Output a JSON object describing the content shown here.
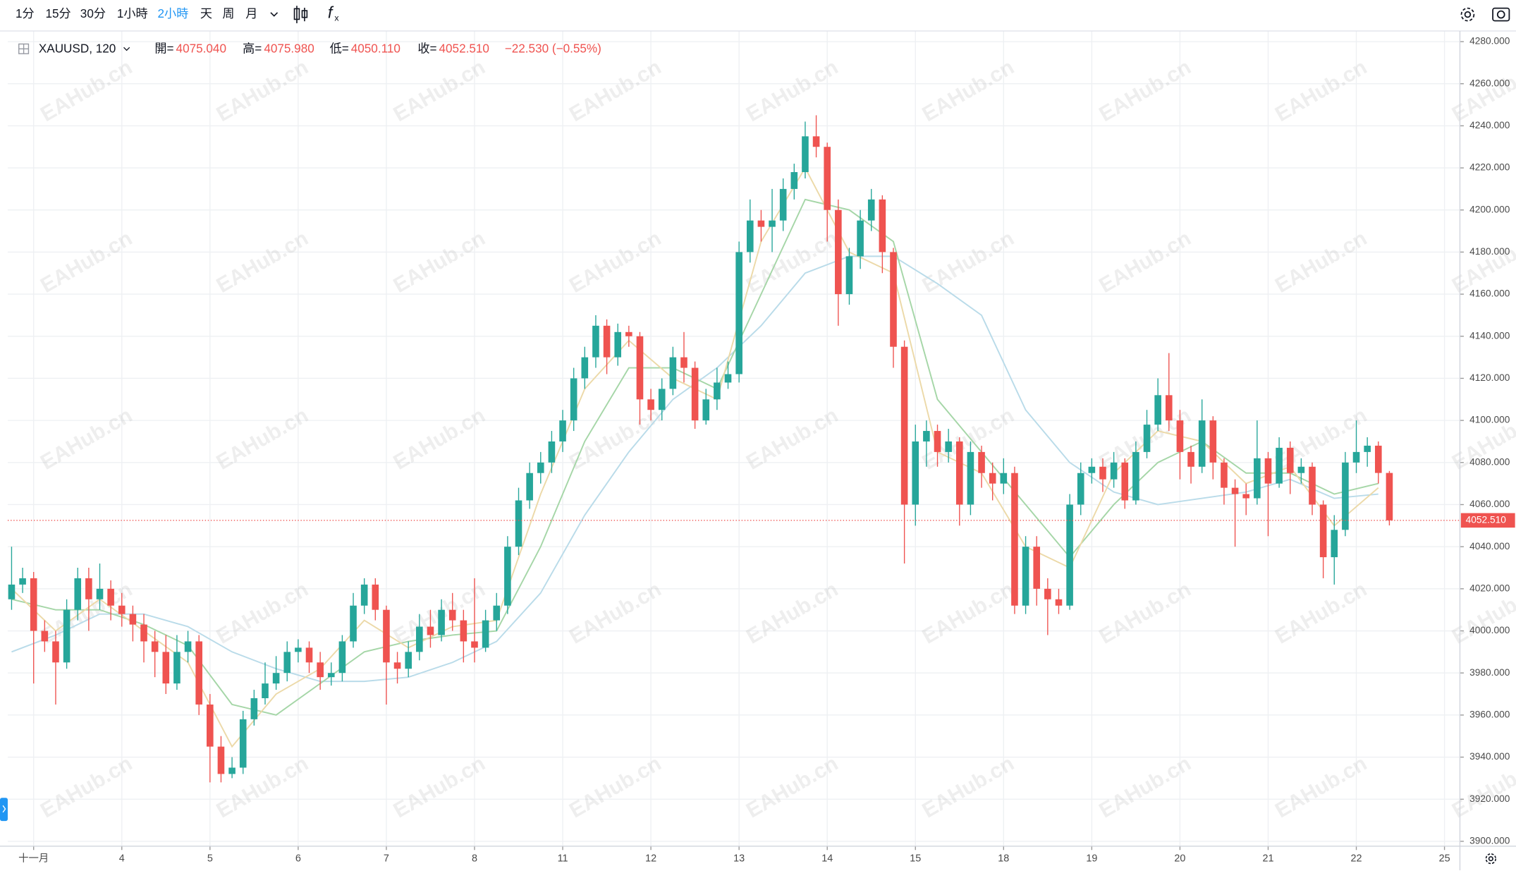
{
  "toolbar": {
    "intervals": [
      "1分",
      "15分",
      "30分",
      "1小時",
      "2小時",
      "天",
      "周",
      "月"
    ],
    "active": 4
  },
  "legend": {
    "symbol": "XAUUSD, 120",
    "open_label": "開=",
    "open": "4075.040",
    "high_label": "高=",
    "high": "4075.980",
    "low_label": "低=",
    "low": "4050.110",
    "close_label": "收=",
    "close": "4052.510",
    "change": "−22.530 (−0.55%)"
  },
  "watermark": "EAHub.cn",
  "chart_data": {
    "type": "candlestick",
    "up_color": "#26a69a",
    "down_color": "#ef5350",
    "grid": true,
    "open": [
      4015,
      4022,
      4025,
      4000,
      3995,
      3985,
      4010,
      4025,
      4015,
      4020,
      4012,
      4008,
      4003,
      3995,
      3990,
      3975,
      3990,
      3995,
      3965,
      3945,
      3932,
      3935,
      3958,
      3968,
      3975,
      3980,
      3990,
      3992,
      3985,
      3978,
      3980,
      3995,
      4012,
      4022,
      4010,
      3985,
      3982,
      3990,
      4002,
      3998,
      4010,
      4005,
      3995,
      3992,
      4005,
      4012,
      4040,
      4062,
      4075,
      4080,
      4090,
      4100,
      4120,
      4130,
      4145,
      4130,
      4142,
      4140,
      4110,
      4105,
      4115,
      4130,
      4125,
      4100,
      4110,
      4118,
      4122,
      4180,
      4195,
      4192,
      4195,
      4210,
      4218,
      4235,
      4230,
      4200,
      4160,
      4178,
      4195,
      4205,
      4180,
      4135,
      4060,
      4090,
      4095,
      4085,
      4090,
      4060,
      4085,
      4075,
      4070,
      4075,
      4012,
      4040,
      4020,
      4015,
      4012,
      4060,
      4075,
      4078,
      4072,
      4080,
      4062,
      4085,
      4098,
      4112,
      4100,
      4085,
      4078,
      4100,
      4080,
      4068,
      4065,
      4063,
      4082,
      4070,
      4087,
      4075,
      4078,
      4060,
      4035,
      4048,
      4080,
      4085,
      4088,
      4075.04
    ],
    "high": [
      4040,
      4030,
      4028,
      4005,
      4000,
      4015,
      4030,
      4030,
      4032,
      4024,
      4018,
      4012,
      4008,
      4000,
      3998,
      3998,
      4000,
      3998,
      3970,
      3950,
      3940,
      3962,
      3972,
      3985,
      3988,
      3995,
      3996,
      3995,
      3990,
      3985,
      3998,
      4018,
      4025,
      4025,
      4012,
      3990,
      3995,
      4008,
      4010,
      4015,
      4018,
      4010,
      4025,
      4010,
      4018,
      4045,
      4068,
      4080,
      4085,
      4095,
      4105,
      4125,
      4135,
      4150,
      4148,
      4146,
      4145,
      4142,
      4115,
      4120,
      4135,
      4142,
      4128,
      4115,
      4125,
      4128,
      4185,
      4205,
      4200,
      4210,
      4215,
      4222,
      4242,
      4245,
      4232,
      4205,
      4182,
      4200,
      4210,
      4207,
      4182,
      4138,
      4098,
      4100,
      4098,
      4096,
      4092,
      4090,
      4088,
      4080,
      4082,
      4078,
      4045,
      4045,
      4025,
      4020,
      4065,
      4080,
      4082,
      4082,
      4085,
      4082,
      4090,
      4105,
      4120,
      4132,
      4105,
      4088,
      4110,
      4102,
      4082,
      4072,
      4070,
      4100,
      4085,
      4092,
      4090,
      4082,
      4080,
      4062,
      4055,
      4085,
      4100,
      4092,
      4090,
      4075.98
    ],
    "low": [
      4010,
      4018,
      3975,
      3990,
      3965,
      3982,
      4005,
      4000,
      4010,
      4005,
      4002,
      3995,
      3985,
      3978,
      3970,
      3972,
      3985,
      3960,
      3928,
      3928,
      3930,
      3932,
      3955,
      3965,
      3972,
      3976,
      3985,
      3980,
      3972,
      3974,
      3976,
      3992,
      4008,
      4005,
      3965,
      3975,
      3978,
      3986,
      3992,
      3995,
      4000,
      3985,
      3985,
      3990,
      4000,
      4008,
      4036,
      4058,
      4070,
      4075,
      4085,
      4095,
      4115,
      4125,
      4122,
      4126,
      4135,
      4098,
      4100,
      4100,
      4112,
      4118,
      4096,
      4098,
      4105,
      4115,
      4118,
      4175,
      4185,
      4180,
      4190,
      4205,
      4215,
      4225,
      4185,
      4145,
      4155,
      4172,
      4190,
      4170,
      4125,
      4032,
      4050,
      4078,
      4078,
      4080,
      4050,
      4055,
      4068,
      4062,
      4065,
      4008,
      4008,
      4012,
      3998,
      4008,
      4010,
      4055,
      4070,
      4066,
      4068,
      4058,
      4060,
      4082,
      4095,
      4095,
      4072,
      4070,
      4075,
      4072,
      4060,
      4040,
      4055,
      4060,
      4045,
      4068,
      4065,
      4070,
      4055,
      4025,
      4022,
      4045,
      4075,
      4078,
      4070,
      4050.11
    ],
    "close": [
      4022,
      4025,
      4000,
      3995,
      3985,
      4010,
      4025,
      4015,
      4020,
      4012,
      4008,
      4003,
      3995,
      3990,
      3975,
      3990,
      3995,
      3965,
      3945,
      3932,
      3935,
      3958,
      3968,
      3975,
      3980,
      3990,
      3992,
      3985,
      3978,
      3980,
      3995,
      4012,
      4022,
      4010,
      3985,
      3982,
      3990,
      4002,
      3998,
      4010,
      4005,
      3995,
      3992,
      4005,
      4012,
      4040,
      4062,
      4075,
      4080,
      4090,
      4100,
      4120,
      4130,
      4145,
      4130,
      4142,
      4140,
      4110,
      4105,
      4115,
      4130,
      4125,
      4100,
      4110,
      4118,
      4122,
      4180,
      4195,
      4192,
      4195,
      4210,
      4218,
      4235,
      4230,
      4200,
      4160,
      4178,
      4195,
      4205,
      4180,
      4135,
      4060,
      4090,
      4095,
      4085,
      4090,
      4060,
      4085,
      4075,
      4070,
      4075,
      4012,
      4040,
      4020,
      4015,
      4012,
      4060,
      4075,
      4078,
      4072,
      4080,
      4062,
      4085,
      4098,
      4112,
      4100,
      4085,
      4078,
      4100,
      4080,
      4068,
      4065,
      4063,
      4082,
      4070,
      4087,
      4075,
      4078,
      4060,
      4035,
      4048,
      4080,
      4085,
      4088,
      4075.04,
      4052.51
    ],
    "lines": [
      {
        "color": "#b9dbe9",
        "x": [
          0,
          4,
          8,
          12,
          16,
          20,
          24,
          28,
          32,
          36,
          40,
          44,
          48,
          52,
          56,
          60,
          64,
          68,
          72,
          76,
          80,
          84,
          88,
          92,
          96,
          100,
          104,
          108,
          112,
          116,
          120,
          124
        ],
        "values": [
          3990,
          3998,
          4008,
          4008,
          4002,
          3990,
          3982,
          3976,
          3976,
          3978,
          3985,
          3995,
          4018,
          4055,
          4085,
          4110,
          4125,
          4145,
          4170,
          4178,
          4178,
          4165,
          4150,
          4105,
          4080,
          4066,
          4060,
          4063,
          4066,
          4072,
          4063,
          4065
        ]
      },
      {
        "color": "#a5d6a7",
        "x": [
          0,
          4,
          8,
          12,
          16,
          20,
          24,
          28,
          32,
          36,
          40,
          44,
          48,
          52,
          56,
          60,
          64,
          68,
          72,
          76,
          80,
          84,
          88,
          92,
          96,
          100,
          104,
          108,
          112,
          116,
          120,
          124
        ],
        "values": [
          4015,
          4010,
          4010,
          4003,
          3993,
          3965,
          3960,
          3975,
          3990,
          3995,
          3998,
          4000,
          4040,
          4090,
          4125,
          4125,
          4115,
          4160,
          4205,
          4200,
          4185,
          4110,
          4085,
          4060,
          4035,
          4060,
          4080,
          4090,
          4075,
          4075,
          4065,
          4070
        ]
      },
      {
        "color": "#ecd9a8",
        "x": [
          0,
          4,
          8,
          12,
          16,
          20,
          24,
          28,
          32,
          36,
          40,
          44,
          48,
          52,
          56,
          60,
          64,
          68,
          72,
          76,
          80,
          84,
          88,
          92,
          96,
          100,
          104,
          108,
          112,
          116,
          120,
          124
        ],
        "values": [
          4020,
          4000,
          4015,
          4000,
          3985,
          3945,
          3970,
          3982,
          4005,
          3992,
          4002,
          4005,
          4065,
          4115,
          4138,
          4120,
          4110,
          4185,
          4220,
          4180,
          4170,
          4085,
          4075,
          4040,
          4030,
          4075,
          4095,
          4090,
          4070,
          4078,
          4050,
          4068
        ]
      }
    ],
    "price_line": {
      "value": 4052.51,
      "label": "4052.510",
      "color": "#ef5350"
    },
    "xlim": [
      -0.35,
      131.4
    ],
    "xticks": [
      {
        "value": 2,
        "label": "十一月"
      },
      {
        "value": 10,
        "label": "4"
      },
      {
        "value": 18,
        "label": "5"
      },
      {
        "value": 26,
        "label": "6"
      },
      {
        "value": 34,
        "label": "7"
      },
      {
        "value": 42,
        "label": "8"
      },
      {
        "value": 50,
        "label": "11"
      },
      {
        "value": 58,
        "label": "12"
      },
      {
        "value": 66,
        "label": "13"
      },
      {
        "value": 74,
        "label": "14"
      },
      {
        "value": 82,
        "label": "15"
      },
      {
        "value": 90,
        "label": "18"
      },
      {
        "value": 98,
        "label": "19"
      },
      {
        "value": 106,
        "label": "20"
      },
      {
        "value": 114,
        "label": "21"
      },
      {
        "value": 122,
        "label": "22"
      },
      {
        "value": 130,
        "label": "25"
      }
    ],
    "ylim": [
      3897.7,
      4283.7
    ],
    "yticks": [
      {
        "value": 3900,
        "label": "3900.000"
      },
      {
        "value": 3920,
        "label": "3920.000"
      },
      {
        "value": 3940,
        "label": "3940.000"
      },
      {
        "value": 3960,
        "label": "3960.000"
      },
      {
        "value": 3980,
        "label": "3980.000"
      },
      {
        "value": 4000,
        "label": "4000.000"
      },
      {
        "value": 4020,
        "label": "4020.000"
      },
      {
        "value": 4040,
        "label": "4040.000"
      },
      {
        "value": 4060,
        "label": "4060.000"
      },
      {
        "value": 4080,
        "label": "4080.000"
      },
      {
        "value": 4100,
        "label": "4100.000"
      },
      {
        "value": 4120,
        "label": "4120.000"
      },
      {
        "value": 4140,
        "label": "4140.000"
      },
      {
        "value": 4160,
        "label": "4160.000"
      },
      {
        "value": 4180,
        "label": "4180.000"
      },
      {
        "value": 4200,
        "label": "4200.000"
      },
      {
        "value": 4220,
        "label": "4220.000"
      },
      {
        "value": 4240,
        "label": "4240.000"
      },
      {
        "value": 4260,
        "label": "4260.000"
      },
      {
        "value": 4280,
        "label": "4280.000"
      }
    ]
  }
}
